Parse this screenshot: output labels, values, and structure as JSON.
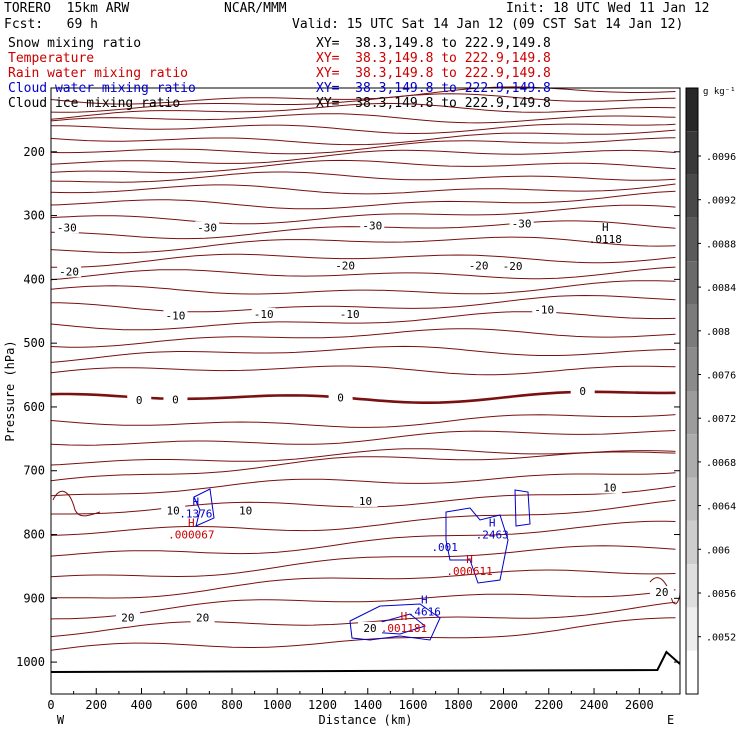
{
  "header": {
    "model": "TORERO  15km ARW",
    "center": "NCAR/MMM",
    "init": "Init: 18 UTC Wed 11 Jan 12",
    "fcst": "Fcst:   69 h",
    "valid": "Valid: 15 UTC Sat 14 Jan 12 (09 CST Sat 14 Jan 12)"
  },
  "fields": [
    {
      "name": "Snow mixing ratio",
      "xy": "XY=  38.3,149.8 to 222.9,149.8",
      "color": "#000000"
    },
    {
      "name": "Temperature",
      "xy": "XY=  38.3,149.8 to 222.9,149.8",
      "color": "#cc0000"
    },
    {
      "name": "Rain water mixing ratio",
      "xy": "XY=  38.3,149.8 to 222.9,149.8",
      "color": "#cc0000"
    },
    {
      "name": "Cloud water mixing ratio",
      "xy": "XY=  38.3,149.8 to 222.9,149.8",
      "color": "#0000cc"
    },
    {
      "name": "Cloud ice mixing ratio",
      "xy": "XY=  38.3,149.8 to 222.9,149.8",
      "color": "#000000"
    }
  ],
  "colorbar": {
    "unit": "g kg⁻¹",
    "labels": [
      ".0096",
      ".0092",
      ".0088",
      ".0084",
      ".008",
      ".0076",
      ".0072",
      ".0068",
      ".0064",
      ".006",
      ".0056",
      ".0052"
    ]
  },
  "chart_data": {
    "type": "contour",
    "xlabel": "Distance (km)",
    "ylabel": "Pressure (hPa)",
    "xlim": [
      0,
      2780
    ],
    "ylim": [
      1050,
      100
    ],
    "x_ticks": [
      0,
      200,
      400,
      600,
      800,
      1000,
      1200,
      1400,
      1600,
      1800,
      2000,
      2200,
      2400,
      2600
    ],
    "y_ticks": [
      200,
      300,
      400,
      500,
      600,
      700,
      800,
      900,
      1000
    ],
    "x_ends": [
      "W",
      "E"
    ],
    "temperature_contour_labels": [
      {
        "text": "-30",
        "x": 70,
        "p": 323
      },
      {
        "text": "-30",
        "x": 690,
        "p": 323
      },
      {
        "text": "-30",
        "x": 1420,
        "p": 320
      },
      {
        "text": "-30",
        "x": 2080,
        "p": 317
      },
      {
        "text": "-20",
        "x": 80,
        "p": 392
      },
      {
        "text": "-20",
        "x": 1300,
        "p": 383
      },
      {
        "text": "-20",
        "x": 1890,
        "p": 383
      },
      {
        "text": "-20",
        "x": 2040,
        "p": 384
      },
      {
        "text": "-10",
        "x": 550,
        "p": 461
      },
      {
        "text": "-10",
        "x": 940,
        "p": 459
      },
      {
        "text": "-10",
        "x": 1320,
        "p": 459
      },
      {
        "text": "-10",
        "x": 2180,
        "p": 452
      },
      {
        "text": "0",
        "x": 390,
        "p": 594
      },
      {
        "text": "0",
        "x": 550,
        "p": 593
      },
      {
        "text": "0",
        "x": 1280,
        "p": 590
      },
      {
        "text": "0",
        "x": 2350,
        "p": 580
      },
      {
        "text": "10",
        "x": 540,
        "p": 767
      },
      {
        "text": "10",
        "x": 860,
        "p": 767
      },
      {
        "text": "10",
        "x": 1390,
        "p": 752
      },
      {
        "text": "10",
        "x": 2470,
        "p": 731
      },
      {
        "text": "20",
        "x": 340,
        "p": 935
      },
      {
        "text": "20",
        "x": 670,
        "p": 935
      },
      {
        "text": "20",
        "x": 1410,
        "p": 951
      },
      {
        "text": "20",
        "x": 2700,
        "p": 895
      }
    ],
    "maxima": [
      {
        "field": "cloud water",
        "mark": "H",
        "value": ".1376",
        "x": 640,
        "p": 770
      },
      {
        "field": "rain water",
        "mark": "H",
        "value": ".000067",
        "x": 620,
        "p": 803
      },
      {
        "field": "cloud water",
        "mark": "H",
        "value": ".2463",
        "x": 1950,
        "p": 803
      },
      {
        "field": "cloud water",
        "mark": "",
        "value": ".001",
        "x": 1740,
        "p": 823
      },
      {
        "field": "rain water",
        "mark": "H",
        "value": ".000611",
        "x": 1850,
        "p": 860
      },
      {
        "field": "cloud water",
        "mark": "H",
        "value": ".4616",
        "x": 1650,
        "p": 924
      },
      {
        "field": "rain water",
        "mark": "H",
        "value": ".001181",
        "x": 1560,
        "p": 950
      },
      {
        "field": "snow",
        "mark": "H",
        "value": ".0118",
        "x": 2450,
        "p": 340
      }
    ],
    "surface_line": true,
    "title": ""
  }
}
